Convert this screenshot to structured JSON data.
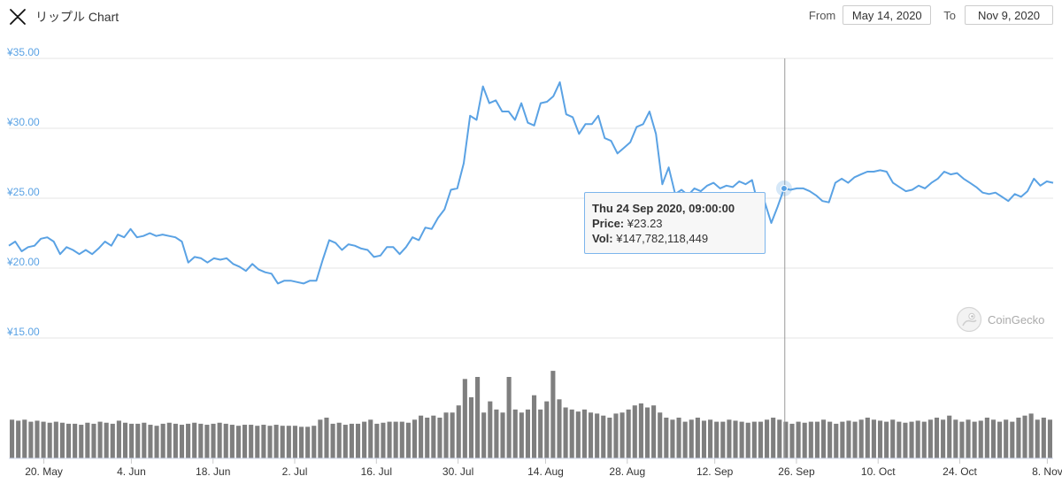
{
  "header": {
    "title": "リップル Chart",
    "logo_icon": "xrp-x-icon"
  },
  "range": {
    "from_label": "From",
    "from_value": "May 14, 2020",
    "to_label": "To",
    "to_value": "Nov 9, 2020"
  },
  "tooltip": {
    "date": "Thu 24 Sep 2020, 09:00:00",
    "price_label": "Price:",
    "price_value": "¥23.23",
    "vol_label": "Vol:",
    "vol_value": "¥147,782,118,449"
  },
  "watermark": {
    "text": "CoinGecko",
    "icon": "coingecko-icon"
  },
  "colors": {
    "line": "#5aa2e4",
    "axis_label": "#5aa2e4",
    "volume": "#7f7f7f",
    "grid": "#e6e6e6",
    "crosshair": "#999999"
  },
  "chart_data": {
    "type": "line",
    "title": "リップル Chart",
    "x_start": "2020-05-14",
    "x_end": "2020-11-09",
    "ylim": [
      15,
      35
    ],
    "y_ticks": [
      "¥35.00",
      "¥30.00",
      "¥25.00",
      "¥20.00",
      "¥15.00"
    ],
    "y_tick_values": [
      35,
      30,
      25,
      20,
      15
    ],
    "x_ticks": [
      "20. May",
      "4. Jun",
      "18. Jun",
      "2. Jul",
      "16. Jul",
      "30. Jul",
      "14. Aug",
      "28. Aug",
      "12. Sep",
      "26. Sep",
      "10. Oct",
      "24. Oct",
      "8. Nov"
    ],
    "x_tick_dates": [
      "2020-05-20",
      "2020-06-04",
      "2020-06-18",
      "2020-07-02",
      "2020-07-16",
      "2020-07-30",
      "2020-08-14",
      "2020-08-28",
      "2020-09-12",
      "2020-09-26",
      "2020-10-10",
      "2020-10-24",
      "2020-11-08"
    ],
    "grid": true,
    "legend": "none",
    "series": [
      {
        "values": [
          21.6,
          21.9,
          21.2,
          21.5,
          21.6,
          22.1,
          22.2,
          21.9,
          21.0,
          21.5,
          21.3,
          21.0,
          21.3,
          21.0,
          21.4,
          21.9,
          21.6,
          22.4,
          22.2,
          22.8,
          22.2,
          22.3,
          22.5,
          22.3,
          22.4,
          22.3,
          22.2,
          21.9,
          20.4,
          20.8,
          20.7,
          20.4,
          20.7,
          20.6,
          20.7,
          20.3,
          20.1,
          19.8,
          20.3,
          19.9,
          19.7,
          19.6,
          18.9,
          19.1,
          19.1,
          19.0,
          18.9,
          19.1,
          19.1,
          20.6,
          22.0,
          21.8,
          21.3,
          21.7,
          21.6,
          21.4,
          21.3,
          20.8,
          20.9,
          21.5,
          21.5,
          21.0,
          21.5,
          22.2,
          22.0,
          22.9,
          22.8,
          23.6,
          24.2,
          25.6,
          25.7,
          27.5,
          30.9,
          30.6,
          33.0,
          31.8,
          32.0,
          31.2,
          31.2,
          30.6,
          31.8,
          30.4,
          30.2,
          31.8,
          31.9,
          32.3,
          33.3,
          31.0,
          30.8,
          29.6,
          30.3,
          30.3,
          30.9,
          29.3,
          29.1,
          28.2,
          28.6,
          29.0,
          30.1,
          30.3,
          31.2,
          29.6,
          26.0,
          27.2,
          25.3,
          25.6,
          25.2,
          25.7,
          25.5,
          25.9,
          26.1,
          25.7,
          25.9,
          25.8,
          26.2,
          26.0,
          26.3,
          24.4,
          24.7,
          23.23,
          24.4,
          25.7,
          25.6,
          25.7,
          25.7,
          25.5,
          25.2,
          24.8,
          24.7,
          26.1,
          26.4,
          26.1,
          26.5,
          26.7,
          26.9,
          26.9,
          27.0,
          26.9,
          26.1,
          25.8,
          25.5,
          25.6,
          25.9,
          25.7,
          26.1,
          26.4,
          26.9,
          26.7,
          26.8,
          26.4,
          26.1,
          25.8,
          25.4,
          25.3,
          25.4,
          25.1,
          24.8,
          25.3,
          25.1,
          25.5,
          26.4,
          25.9,
          26.2,
          26.1
        ]
      }
    ],
    "volume": [
      0.38,
      0.37,
      0.38,
      0.36,
      0.37,
      0.36,
      0.35,
      0.36,
      0.35,
      0.34,
      0.34,
      0.33,
      0.35,
      0.34,
      0.36,
      0.35,
      0.34,
      0.37,
      0.35,
      0.34,
      0.34,
      0.35,
      0.33,
      0.32,
      0.34,
      0.35,
      0.34,
      0.33,
      0.34,
      0.35,
      0.34,
      0.33,
      0.34,
      0.35,
      0.34,
      0.33,
      0.32,
      0.33,
      0.33,
      0.32,
      0.33,
      0.32,
      0.33,
      0.32,
      0.32,
      0.32,
      0.31,
      0.31,
      0.32,
      0.38,
      0.4,
      0.34,
      0.35,
      0.33,
      0.34,
      0.34,
      0.36,
      0.38,
      0.34,
      0.35,
      0.36,
      0.36,
      0.36,
      0.35,
      0.38,
      0.42,
      0.4,
      0.42,
      0.4,
      0.45,
      0.45,
      0.52,
      0.78,
      0.6,
      0.8,
      0.45,
      0.56,
      0.48,
      0.45,
      0.8,
      0.48,
      0.45,
      0.48,
      0.62,
      0.48,
      0.56,
      0.86,
      0.58,
      0.5,
      0.48,
      0.46,
      0.48,
      0.45,
      0.44,
      0.42,
      0.4,
      0.44,
      0.45,
      0.48,
      0.52,
      0.54,
      0.5,
      0.52,
      0.45,
      0.4,
      0.38,
      0.4,
      0.36,
      0.38,
      0.4,
      0.37,
      0.38,
      0.36,
      0.36,
      0.38,
      0.37,
      0.36,
      0.35,
      0.36,
      0.36,
      0.38,
      0.4,
      0.38,
      0.36,
      0.34,
      0.36,
      0.35,
      0.36,
      0.36,
      0.38,
      0.36,
      0.34,
      0.36,
      0.37,
      0.36,
      0.38,
      0.4,
      0.38,
      0.37,
      0.36,
      0.38,
      0.36,
      0.35,
      0.36,
      0.37,
      0.36,
      0.38,
      0.4,
      0.38,
      0.42,
      0.38,
      0.36,
      0.38,
      0.36,
      0.37,
      0.4,
      0.38,
      0.36,
      0.38,
      0.36,
      0.4,
      0.42,
      0.44,
      0.38,
      0.4,
      0.38
    ],
    "crosshair_date": "2020-09-24"
  }
}
